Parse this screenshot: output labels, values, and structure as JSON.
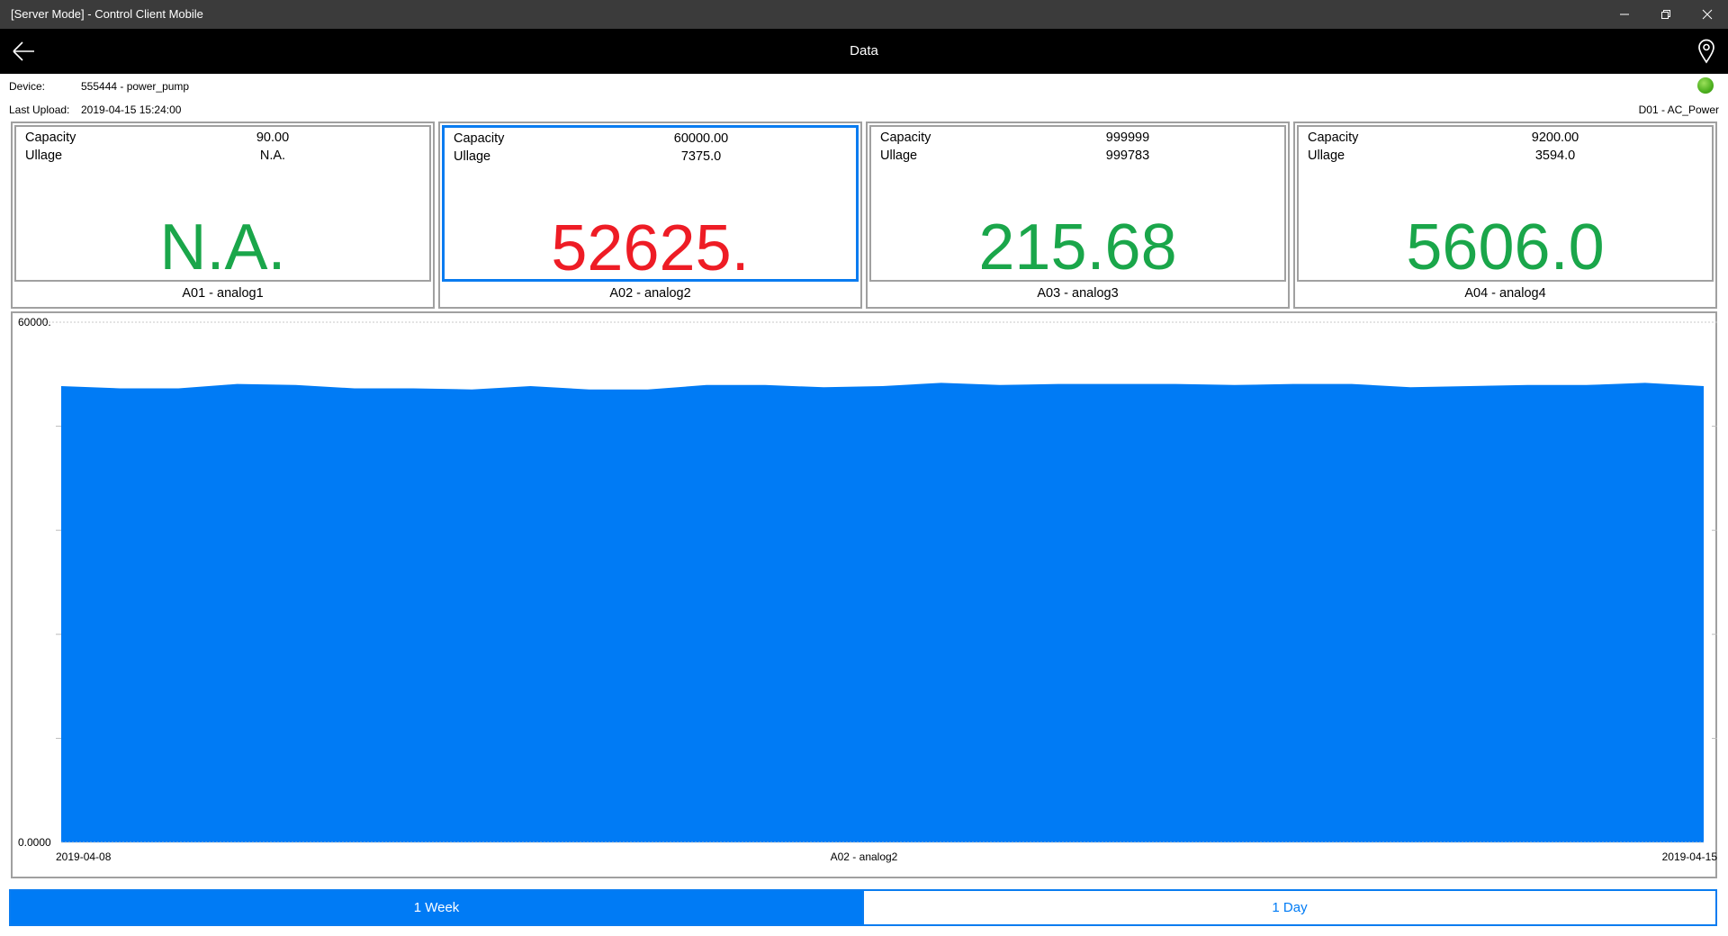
{
  "window": {
    "title": "[Server Mode] - Control Client Mobile",
    "controls": [
      "minimize-icon",
      "restore-icon",
      "close-icon"
    ]
  },
  "nav": {
    "title": "Data",
    "back_icon": "arrow-left-icon",
    "location_icon": "map-pin-icon"
  },
  "device": {
    "device_label": "Device:",
    "device_value": "555444 - power_pump",
    "upload_label": "Last Upload:",
    "upload_value": "2019-04-15 15:24:00",
    "status_color": "#4caf1e",
    "digital_label": "D01 - AC_Power"
  },
  "cards": [
    {
      "capacity_label": "Capacity",
      "capacity": "90.00",
      "ullage_label": "Ullage",
      "ullage": "N.A.",
      "reading": "N.A.",
      "reading_color": "#1aa64a",
      "name": "A01 - analog1",
      "selected": false
    },
    {
      "capacity_label": "Capacity",
      "capacity": "60000.00",
      "ullage_label": "Ullage",
      "ullage": "7375.0",
      "reading": "52625.",
      "reading_color": "#ee1c25",
      "name": "A02 - analog2",
      "selected": true
    },
    {
      "capacity_label": "Capacity",
      "capacity": "999999",
      "ullage_label": "Ullage",
      "ullage": "999783",
      "reading": "215.68",
      "reading_color": "#1aa64a",
      "name": "A03 - analog3",
      "selected": false
    },
    {
      "capacity_label": "Capacity",
      "capacity": "9200.00",
      "ullage_label": "Ullage",
      "ullage": "3594.0",
      "reading": "5606.0",
      "reading_color": "#1aa64a",
      "name": "A04 - analog4",
      "selected": false
    }
  ],
  "chart_data": {
    "type": "area",
    "xlabel": "A02 - analog2",
    "x_tick_labels": [
      "2019-04-08",
      "2019-04-15"
    ],
    "y_tick_labels": [
      "60000.",
      "0.0000"
    ],
    "ylim": [
      0,
      60000
    ],
    "x_range": [
      "2019-04-08",
      "2019-04-15"
    ],
    "color": "#007bf5",
    "grid": "top dotted line only",
    "values": [
      52627,
      52373,
      52373,
      52881,
      52754,
      52373,
      52373,
      52246,
      52627,
      52246,
      52246,
      52754,
      52754,
      52500,
      52627,
      53008,
      52754,
      52881,
      52881,
      52881,
      52754,
      52881,
      52881,
      52500,
      52627,
      52754,
      52754,
      53008,
      52627
    ]
  },
  "range_buttons": [
    {
      "label": "1 Week",
      "active": true
    },
    {
      "label": "1 Day",
      "active": false
    }
  ],
  "accent": "#007bf5"
}
